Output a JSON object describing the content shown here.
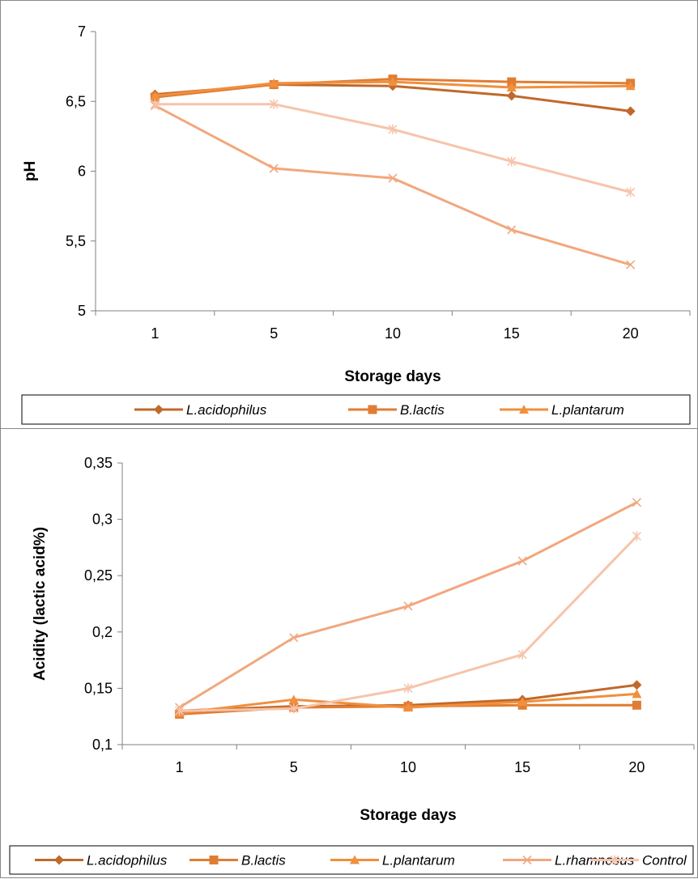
{
  "chart_data": [
    {
      "type": "line",
      "title": "",
      "xlabel": "Storage days",
      "ylabel": "pH",
      "categories": [
        "1",
        "5",
        "10",
        "15",
        "20"
      ],
      "y_ticks": [
        "5",
        "5,5",
        "6",
        "6,5",
        "7"
      ],
      "ylim": [
        5,
        7
      ],
      "grid": false,
      "legend_position": "bottom",
      "legend_entries": [
        "L.acidophilus",
        "B.lactis",
        "L.plantarum"
      ],
      "series": [
        {
          "name": "L.acidophilus",
          "marker": "diamond",
          "color": "#C0692A",
          "values": [
            6.55,
            6.62,
            6.61,
            6.54,
            6.43
          ]
        },
        {
          "name": "B.lactis",
          "marker": "square",
          "color": "#E07D33",
          "values": [
            6.53,
            6.62,
            6.66,
            6.64,
            6.63
          ]
        },
        {
          "name": "L.plantarum",
          "marker": "triangle",
          "color": "#F08F3E",
          "values": [
            6.54,
            6.63,
            6.64,
            6.6,
            6.61
          ]
        },
        {
          "marker": "x",
          "color": "#F2A77E",
          "values": [
            6.47,
            6.02,
            5.95,
            5.58,
            5.33
          ]
        },
        {
          "marker": "star",
          "color": "#F6C4AB",
          "values": [
            6.48,
            6.48,
            6.3,
            6.07,
            5.85
          ]
        }
      ]
    },
    {
      "type": "line",
      "title": "",
      "xlabel": "Storage days",
      "ylabel": "Acidity (lactic acid%)",
      "categories": [
        "1",
        "5",
        "10",
        "15",
        "20"
      ],
      "y_ticks": [
        "0,1",
        "0,15",
        "0,2",
        "0,25",
        "0,3",
        "0,35"
      ],
      "ylim": [
        0.1,
        0.35
      ],
      "grid": false,
      "legend_position": "bottom",
      "legend_entries": [
        "L.acidophilus",
        "B.lactis",
        "L.plantarum",
        "L.rhamnosus",
        "Control"
      ],
      "series": [
        {
          "name": "L.acidophilus",
          "marker": "diamond",
          "color": "#C0692A",
          "values": [
            0.13,
            0.134,
            0.135,
            0.14,
            0.153
          ]
        },
        {
          "name": "B.lactis",
          "marker": "square",
          "color": "#E07D33",
          "values": [
            0.127,
            0.133,
            0.134,
            0.135,
            0.135
          ]
        },
        {
          "name": "L.plantarum",
          "marker": "triangle",
          "color": "#F08F3E",
          "values": [
            0.128,
            0.14,
            0.133,
            0.138,
            0.145
          ]
        },
        {
          "name": "L.rhamnosus",
          "marker": "x",
          "color": "#F2A77E",
          "values": [
            0.133,
            0.195,
            0.223,
            0.263,
            0.315
          ]
        },
        {
          "name": "Control",
          "marker": "star",
          "color": "#F6C4AB",
          "values": [
            0.13,
            0.132,
            0.15,
            0.18,
            0.285
          ]
        }
      ]
    }
  ]
}
